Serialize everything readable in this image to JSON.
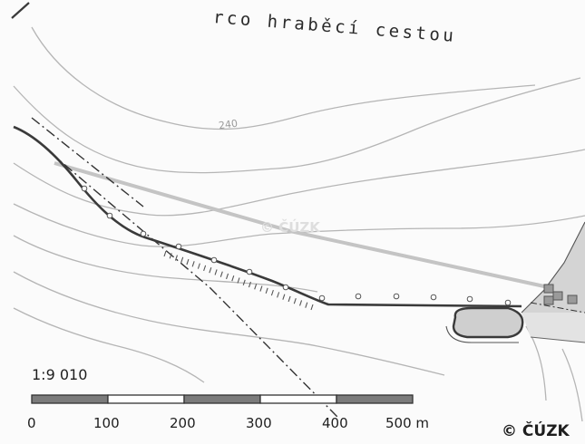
{
  "map": {
    "road_label": "rco hraběcí cestou",
    "contour_label": "240",
    "watermark": "© ČÚZK",
    "copyright": "© ČÚZK"
  },
  "scale": {
    "ratio": "1:9 010",
    "ticks": [
      "0",
      "100",
      "200",
      "300",
      "400",
      "500 m"
    ]
  },
  "colors": {
    "background": "#fbfbfb",
    "contour": "#b5b5b5",
    "road": "#3a3a3a",
    "path": "#c4c4c4",
    "scale_dark": "#7b7b7b"
  }
}
